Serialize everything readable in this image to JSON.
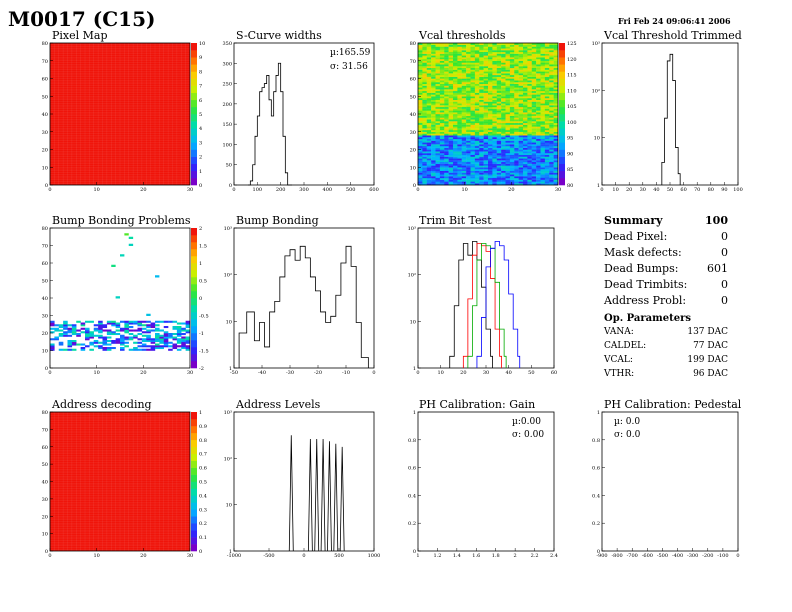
{
  "page": {
    "module_title": "M0017 (C15)",
    "date": "Fri Feb 24 09:06:41 2006"
  },
  "panels": {
    "pixel_map": {
      "title": "Pixel Map"
    },
    "scurve": {
      "title": "S-Curve widths",
      "mu": "µ:165.59",
      "sigma": "σ: 31.56"
    },
    "vcal_thr": {
      "title": "Vcal thresholds"
    },
    "vcal_trim": {
      "title": "Vcal Threshold Trimmed"
    },
    "bump_problems": {
      "title": "Bump Bonding Problems"
    },
    "bump": {
      "title": "Bump Bonding"
    },
    "trim_bit": {
      "title": "Trim Bit Test"
    },
    "address_dec": {
      "title": "Address decoding"
    },
    "address_levels": {
      "title": "Address Levels"
    },
    "ph_gain": {
      "title": "PH Calibration: Gain",
      "mu": "µ:0.00",
      "sigma": "σ: 0.00"
    },
    "ph_ped": {
      "title": "PH Calibration: Pedestal",
      "mu": "µ: 0.0",
      "sigma": "σ:  0.0"
    }
  },
  "summary": {
    "title": "Summary",
    "total": "100",
    "rows": [
      {
        "label": "Dead Pixel:",
        "value": "0"
      },
      {
        "label": "Mask defects:",
        "value": "0"
      },
      {
        "label": "Dead Bumps:",
        "value": "601"
      },
      {
        "label": "Dead Trimbits:",
        "value": "0"
      },
      {
        "label": "Address Probl:",
        "value": "0"
      }
    ],
    "op_title": "Op. Parameters",
    "op_rows": [
      {
        "label": "VANA:",
        "value": "137 DAC"
      },
      {
        "label": "CALDEL:",
        "value": "77 DAC"
      },
      {
        "label": "VCAL:",
        "value": "199 DAC"
      },
      {
        "label": "VTHR:",
        "value": "96 DAC"
      }
    ]
  },
  "chart_data": [
    {
      "id": "pixel_map",
      "type": "heatmap",
      "title": "Pixel Map",
      "xlim": [
        0,
        32
      ],
      "ylim": [
        0,
        80
      ],
      "xticks": [
        "0",
        "10",
        "20",
        "30"
      ],
      "yticks": [
        "0",
        "10",
        "20",
        "30",
        "40",
        "50",
        "60",
        "70",
        "80"
      ],
      "zlim": [
        0,
        10
      ],
      "zticks": [
        "0",
        "1",
        "2",
        "3",
        "4",
        "5",
        "6",
        "7",
        "8",
        "9",
        "10"
      ],
      "fill_value": 10
    },
    {
      "id": "scurve",
      "type": "line",
      "title": "S-Curve widths",
      "xlim": [
        0,
        600
      ],
      "ylim": [
        0,
        350
      ],
      "xticks": [
        "0",
        "100",
        "200",
        "300",
        "400",
        "500",
        "600"
      ],
      "yticks": [
        "0",
        "50",
        "100",
        "150",
        "200",
        "250",
        "300",
        "350"
      ],
      "x": [
        60,
        70,
        80,
        90,
        100,
        110,
        120,
        130,
        140,
        150,
        160,
        170,
        180,
        190,
        200,
        210,
        220,
        230,
        240
      ],
      "y": [
        0,
        10,
        50,
        120,
        170,
        230,
        240,
        250,
        270,
        210,
        170,
        230,
        270,
        300,
        230,
        120,
        30,
        0,
        0
      ]
    },
    {
      "id": "vcal_thr",
      "type": "heatmap",
      "title": "Vcal thresholds",
      "xlim": [
        0,
        32
      ],
      "ylim": [
        0,
        80
      ],
      "xticks": [
        "0",
        "10",
        "20",
        "30"
      ],
      "yticks": [
        "0",
        "10",
        "20",
        "30",
        "40",
        "50",
        "60",
        "70",
        "80"
      ],
      "zlim": [
        80,
        130
      ],
      "zticks": [
        "80",
        "85",
        "90",
        "95",
        "100",
        "105",
        "110",
        "115",
        "120",
        "125"
      ],
      "regions": [
        {
          "rows": "0-28",
          "mean": 92
        },
        {
          "rows": "28-80",
          "mean": 112
        }
      ]
    },
    {
      "id": "vcal_trim",
      "type": "line",
      "title": "Vcal Threshold Trimmed",
      "log_y": true,
      "xlim": [
        0,
        100
      ],
      "ylim": [
        0.5,
        3000
      ],
      "xticks": [
        "0",
        "10",
        "20",
        "30",
        "40",
        "50",
        "60",
        "70",
        "80",
        "90",
        "100"
      ],
      "yticks": [
        "1",
        "10",
        "10²",
        "10³"
      ],
      "x": [
        44,
        46,
        48,
        50,
        52,
        54,
        56
      ],
      "y": [
        2,
        30,
        1000,
        1500,
        300,
        5,
        1
      ]
    },
    {
      "id": "bump_problems",
      "type": "heatmap",
      "title": "Bump Bonding Problems",
      "xlim": [
        0,
        32
      ],
      "ylim": [
        0,
        80
      ],
      "xticks": [
        "0",
        "10",
        "20",
        "30"
      ],
      "yticks": [
        "0",
        "10",
        "20",
        "30",
        "40",
        "50",
        "60",
        "70",
        "80"
      ],
      "zlim": [
        -2,
        2
      ],
      "zticks": [
        "-2",
        "-1.5",
        "-1",
        "-0.5",
        "0",
        "0.5",
        "1",
        "1.5",
        "2"
      ],
      "band_rows": [
        10,
        27
      ]
    },
    {
      "id": "bump",
      "type": "line",
      "title": "Bump Bonding",
      "log_y": true,
      "xlim": [
        -50,
        5
      ],
      "ylim": [
        0.5,
        5000
      ],
      "xticks": [
        "-50",
        "-40",
        "-30",
        "-20",
        "-10",
        "0"
      ],
      "yticks": [
        "1",
        "10",
        "10²",
        "10³"
      ],
      "x": [
        -48,
        -45,
        -42,
        -40,
        -38,
        -36,
        -34,
        -32,
        -30,
        -28,
        -26,
        -24,
        -22,
        -20,
        -18,
        -16,
        -14,
        -12,
        -10,
        -8,
        -6,
        -4,
        -2,
        0,
        2
      ],
      "y": [
        5,
        20,
        3,
        10,
        2,
        20,
        40,
        200,
        800,
        1200,
        600,
        1500,
        700,
        200,
        80,
        20,
        10,
        15,
        60,
        500,
        1500,
        400,
        10,
        1,
        1
      ]
    },
    {
      "id": "trim_bit",
      "type": "line",
      "title": "Trim Bit Test",
      "log_y": true,
      "xlim": [
        0,
        60
      ],
      "ylim": [
        0.5,
        2000
      ],
      "xticks": [
        "0",
        "10",
        "20",
        "30",
        "40",
        "50",
        "60"
      ],
      "yticks": [
        "1",
        "10",
        "10²",
        "10³"
      ],
      "series": [
        {
          "color": "#000000",
          "x": [
            14,
            16,
            18,
            20,
            22,
            24,
            26,
            28,
            30,
            32
          ],
          "y": [
            1,
            20,
            300,
            800,
            400,
            900,
            300,
            60,
            5,
            1
          ]
        },
        {
          "color": "#ff0000",
          "x": [
            20,
            22,
            24,
            26,
            28,
            30,
            32,
            34,
            36
          ],
          "y": [
            1,
            30,
            400,
            800,
            700,
            500,
            100,
            5,
            1
          ]
        },
        {
          "color": "#00aa00",
          "x": [
            22,
            24,
            26,
            28,
            30,
            32,
            34,
            36,
            38
          ],
          "y": [
            1,
            20,
            300,
            800,
            700,
            600,
            80,
            5,
            1
          ]
        },
        {
          "color": "#0000ff",
          "x": [
            26,
            28,
            30,
            32,
            34,
            36,
            38,
            40,
            42,
            44
          ],
          "y": [
            1,
            10,
            200,
            600,
            900,
            700,
            300,
            40,
            5,
            1
          ]
        }
      ]
    },
    {
      "id": "address_dec",
      "type": "heatmap",
      "title": "Address decoding",
      "xlim": [
        0,
        32
      ],
      "ylim": [
        0,
        80
      ],
      "xticks": [
        "0",
        "10",
        "20",
        "30"
      ],
      "yticks": [
        "0",
        "10",
        "20",
        "30",
        "40",
        "50",
        "60",
        "70",
        "80"
      ],
      "zlim": [
        0,
        1
      ],
      "zticks": [
        "0",
        "0.1",
        "0.2",
        "0.3",
        "0.4",
        "0.5",
        "0.6",
        "0.7",
        "0.8",
        "0.9",
        "1"
      ],
      "fill_value": 1
    },
    {
      "id": "address_levels",
      "type": "line",
      "title": "Address Levels",
      "log_y": true,
      "xlim": [
        -1200,
        1000
      ],
      "ylim": [
        0.5,
        2000
      ],
      "xticks": [
        "-1000",
        "-500",
        "0",
        "500",
        "1000"
      ],
      "yticks": [
        "1",
        "10",
        "10²",
        "10³"
      ],
      "peaks_x": [
        -300,
        0,
        100,
        200,
        300,
        400,
        500
      ],
      "peaks_y": [
        500,
        400,
        400,
        400,
        350,
        300,
        250
      ]
    },
    {
      "id": "ph_gain",
      "type": "line",
      "title": "PH Calibration: Gain",
      "xlim": [
        1,
        2.4
      ],
      "ylim": [
        0,
        1.05
      ],
      "xticks": [
        "1",
        "1.2",
        "1.4",
        "1.6",
        "1.8",
        "2",
        "2.2",
        "2.4"
      ],
      "yticks": [
        "0",
        "0.2",
        "0.4",
        "0.6",
        "0.8",
        "1"
      ],
      "x": [],
      "y": []
    },
    {
      "id": "ph_ped",
      "type": "line",
      "title": "PH Calibration: Pedestal",
      "xlim": [
        -900,
        0
      ],
      "ylim": [
        0,
        1.05
      ],
      "xticks": [
        "-900",
        "-800",
        "-700",
        "-600",
        "-500",
        "-400",
        "-300",
        "-200",
        "-100",
        "0"
      ],
      "yticks": [
        "0",
        "0.2",
        "0.4",
        "0.6",
        "0.8",
        "1"
      ],
      "x": [],
      "y": []
    }
  ]
}
